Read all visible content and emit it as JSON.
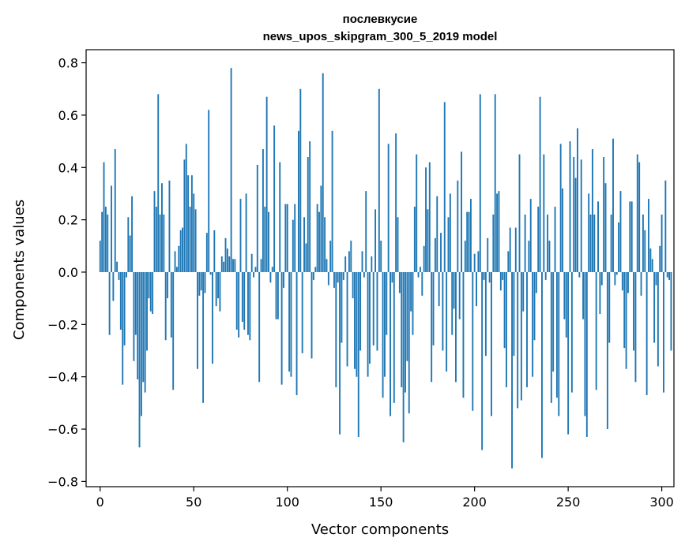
{
  "chart_data": {
    "type": "bar",
    "title": "послевкусие",
    "subtitle": "news_upos_skipgram_300_5_2019 model",
    "xlabel": "Vector components",
    "ylabel": "Components values",
    "xlim": [
      -7.5,
      306.5
    ],
    "ylim": [
      -0.82,
      0.85
    ],
    "x_ticks": [
      0,
      50,
      100,
      150,
      200,
      250,
      300
    ],
    "y_ticks": [
      -0.8,
      -0.6,
      -0.4,
      -0.2,
      0.0,
      0.2,
      0.4,
      0.6,
      0.8
    ],
    "grid": false,
    "bar_color": "#1f77b4",
    "values": [
      0.12,
      0.23,
      0.42,
      0.25,
      0.22,
      -0.24,
      0.33,
      -0.11,
      0.47,
      0.04,
      -0.03,
      -0.22,
      -0.43,
      -0.28,
      -0.02,
      0.21,
      0.14,
      0.29,
      -0.34,
      -0.24,
      -0.41,
      -0.67,
      -0.55,
      -0.42,
      -0.46,
      -0.3,
      -0.1,
      -0.15,
      -0.16,
      0.31,
      0.25,
      0.68,
      0.22,
      0.34,
      0.22,
      -0.26,
      -0.1,
      0.35,
      -0.25,
      -0.45,
      0.08,
      0.02,
      0.1,
      0.16,
      0.17,
      0.43,
      0.49,
      0.37,
      0.25,
      0.37,
      0.3,
      0.24,
      -0.37,
      -0.09,
      -0.07,
      -0.5,
      -0.08,
      0.15,
      0.62,
      -0.01,
      -0.35,
      0.16,
      -0.13,
      -0.1,
      -0.15,
      0.06,
      0.04,
      0.13,
      0.09,
      0.06,
      0.78,
      0.05,
      0.05,
      -0.22,
      -0.25,
      0.28,
      -0.19,
      -0.22,
      0.3,
      -0.24,
      -0.26,
      0.07,
      -0.02,
      0.02,
      0.41,
      -0.42,
      0.05,
      0.47,
      0.25,
      0.67,
      0.23,
      -0.04,
      0.02,
      0.56,
      -0.18,
      -0.18,
      0.42,
      -0.43,
      -0.06,
      0.26,
      0.26,
      -0.38,
      -0.4,
      0.2,
      0.26,
      -0.47,
      0.54,
      0.7,
      -0.31,
      0.21,
      0.11,
      0.44,
      0.5,
      -0.33,
      -0.03,
      0.02,
      0.26,
      0.23,
      0.33,
      0.76,
      0.21,
      0.05,
      -0.05,
      0.12,
      0.54,
      -0.06,
      -0.44,
      -0.04,
      -0.62,
      -0.27,
      -0.03,
      0.06,
      -0.36,
      0.08,
      0.12,
      -0.1,
      -0.37,
      -0.4,
      -0.63,
      -0.3,
      0.08,
      -0.02,
      0.31,
      -0.4,
      -0.35,
      0.06,
      -0.28,
      0.24,
      -0.3,
      0.7,
      0.12,
      -0.48,
      -0.4,
      -0.24,
      0.49,
      -0.55,
      -0.04,
      -0.5,
      0.53,
      0.21,
      -0.08,
      -0.44,
      -0.65,
      -0.46,
      -0.34,
      -0.54,
      -0.15,
      -0.24,
      0.25,
      0.45,
      -0.02,
      0.02,
      -0.09,
      0.1,
      0.4,
      0.24,
      0.42,
      -0.42,
      -0.28,
      0.13,
      0.29,
      -0.13,
      0.15,
      -0.3,
      0.65,
      -0.38,
      0.21,
      0.3,
      -0.24,
      -0.14,
      -0.42,
      0.35,
      -0.18,
      0.46,
      -0.48,
      0.12,
      0.23,
      0.23,
      0.28,
      -0.53,
      0.07,
      -0.13,
      0.08,
      0.68,
      -0.68,
      -0.03,
      -0.32,
      0.13,
      -0.04,
      -0.55,
      0.22,
      0.68,
      0.3,
      0.31,
      -0.07,
      -0.03,
      -0.29,
      -0.44,
      0.08,
      0.17,
      -0.75,
      -0.32,
      0.17,
      -0.52,
      0.45,
      -0.49,
      -0.15,
      0.22,
      -0.44,
      0.12,
      0.28,
      -0.4,
      -0.26,
      -0.08,
      0.25,
      0.67,
      -0.71,
      0.45,
      -0.03,
      0.22,
      0.12,
      -0.5,
      -0.38,
      0.25,
      -0.48,
      -0.55,
      0.49,
      0.32,
      -0.18,
      -0.25,
      -0.62,
      0.5,
      -0.46,
      0.44,
      0.36,
      0.55,
      -0.02,
      0.43,
      -0.18,
      -0.55,
      -0.63,
      0.3,
      0.22,
      0.47,
      0.22,
      -0.45,
      0.27,
      -0.16,
      -0.05,
      0.44,
      0.34,
      -0.6,
      -0.27,
      0.22,
      0.51,
      -0.05,
      -0.01,
      0.19,
      0.31,
      -0.07,
      -0.29,
      -0.37,
      -0.08,
      0.27,
      0.27,
      -0.3,
      -0.42,
      0.45,
      0.42,
      -0.09,
      0.22,
      0.16,
      -0.47,
      0.28,
      0.09,
      0.05,
      -0.27,
      -0.05,
      -0.36,
      0.1,
      0.22,
      -0.46,
      0.35,
      -0.02,
      -0.03,
      -0.3
    ]
  }
}
